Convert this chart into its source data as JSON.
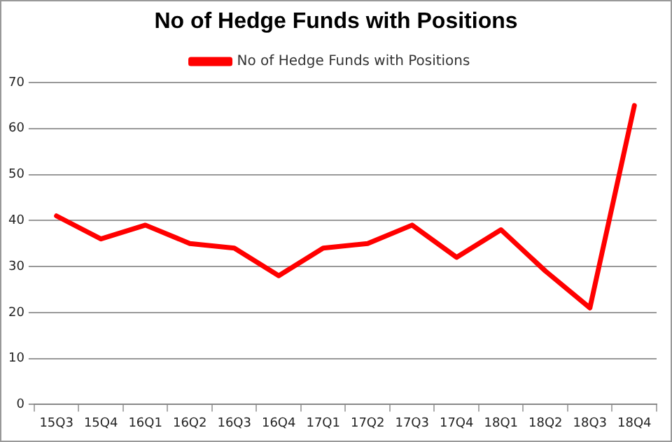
{
  "chart_data": {
    "type": "line",
    "title": "No of Hedge Funds with Positions",
    "categories": [
      "15Q3",
      "15Q4",
      "16Q1",
      "16Q2",
      "16Q3",
      "16Q4",
      "17Q1",
      "17Q2",
      "17Q3",
      "17Q4",
      "18Q1",
      "18Q2",
      "18Q3",
      "18Q4"
    ],
    "series": [
      {
        "name": "No of Hedge Funds with Positions",
        "color": "#ff0000",
        "values": [
          41,
          36,
          39,
          35,
          34,
          28,
          34,
          35,
          39,
          32,
          38,
          29,
          21,
          65
        ]
      }
    ],
    "ylim": [
      0,
      70
    ],
    "yticks": [
      0,
      10,
      20,
      30,
      40,
      50,
      60,
      70
    ],
    "grid": "y",
    "legend": "top",
    "marker": "none",
    "line_style": "solid"
  }
}
